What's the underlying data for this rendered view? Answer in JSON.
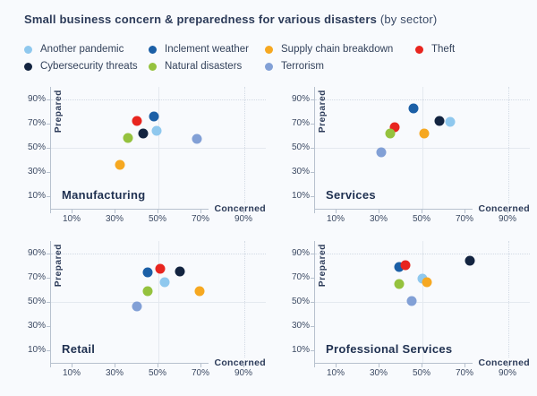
{
  "title": {
    "main": "Small business concern & preparedness for various disasters",
    "suffix": "(by sector)"
  },
  "colors": {
    "background": "#f8fafd",
    "axis": "#b7c1ce",
    "grid_solid": "#e4e9ef",
    "grid_dotted": "#d2dae4",
    "text": "#2c3b59"
  },
  "chart_data": {
    "type": "scatter",
    "title": "Small business concern & preparedness for various disasters (by sector)",
    "xlabel": "Concerned",
    "ylabel": "Prepared",
    "xlim": [
      0,
      100
    ],
    "ylim": [
      0,
      100
    ],
    "x_ticks": [
      10,
      30,
      50,
      70,
      90
    ],
    "y_ticks": [
      10,
      30,
      50,
      70,
      90
    ],
    "tick_suffix": "%",
    "solid_gridline_at": 50,
    "dotted_gridline_at": 90,
    "legend_position": "top",
    "series": [
      {
        "name": "Another pandemic",
        "color": "#8fc8ee"
      },
      {
        "name": "Inclement weather",
        "color": "#1b5fa6"
      },
      {
        "name": "Supply chain breakdown",
        "color": "#f6a821"
      },
      {
        "name": "Theft",
        "color": "#e8251f"
      },
      {
        "name": "Cybersecurity threats",
        "color": "#132440"
      },
      {
        "name": "Natural disasters",
        "color": "#95c23e"
      },
      {
        "name": "Terrorism",
        "color": "#82a0d6"
      }
    ],
    "panels": [
      {
        "sector": "Manufacturing",
        "points": [
          {
            "series": "Another pandemic",
            "concerned": 49,
            "prepared": 64
          },
          {
            "series": "Inclement weather",
            "concerned": 48,
            "prepared": 76
          },
          {
            "series": "Supply chain breakdown",
            "concerned": 32,
            "prepared": 36
          },
          {
            "series": "Theft",
            "concerned": 40,
            "prepared": 72
          },
          {
            "series": "Cybersecurity threats",
            "concerned": 43,
            "prepared": 62
          },
          {
            "series": "Natural disasters",
            "concerned": 36,
            "prepared": 58
          },
          {
            "series": "Terrorism",
            "concerned": 68,
            "prepared": 57
          }
        ]
      },
      {
        "sector": "Services",
        "points": [
          {
            "series": "Another pandemic",
            "concerned": 63,
            "prepared": 71
          },
          {
            "series": "Inclement weather",
            "concerned": 46,
            "prepared": 82
          },
          {
            "series": "Supply chain breakdown",
            "concerned": 51,
            "prepared": 62
          },
          {
            "series": "Theft",
            "concerned": 37,
            "prepared": 67
          },
          {
            "series": "Cybersecurity threats",
            "concerned": 58,
            "prepared": 72
          },
          {
            "series": "Natural disasters",
            "concerned": 35,
            "prepared": 62
          },
          {
            "series": "Terrorism",
            "concerned": 31,
            "prepared": 46
          }
        ]
      },
      {
        "sector": "Retail",
        "points": [
          {
            "series": "Another pandemic",
            "concerned": 53,
            "prepared": 66
          },
          {
            "series": "Inclement weather",
            "concerned": 45,
            "prepared": 74
          },
          {
            "series": "Supply chain breakdown",
            "concerned": 69,
            "prepared": 59
          },
          {
            "series": "Theft",
            "concerned": 51,
            "prepared": 77
          },
          {
            "series": "Cybersecurity threats",
            "concerned": 60,
            "prepared": 75
          },
          {
            "series": "Natural disasters",
            "concerned": 45,
            "prepared": 59
          },
          {
            "series": "Terrorism",
            "concerned": 40,
            "prepared": 46
          }
        ]
      },
      {
        "sector": "Professional Services",
        "points": [
          {
            "series": "Another pandemic",
            "concerned": 50,
            "prepared": 69
          },
          {
            "series": "Inclement weather",
            "concerned": 39,
            "prepared": 79
          },
          {
            "series": "Supply chain breakdown",
            "concerned": 52,
            "prepared": 66
          },
          {
            "series": "Theft",
            "concerned": 42,
            "prepared": 80
          },
          {
            "series": "Cybersecurity threats",
            "concerned": 72,
            "prepared": 84
          },
          {
            "series": "Natural disasters",
            "concerned": 39,
            "prepared": 65
          },
          {
            "series": "Terrorism",
            "concerned": 45,
            "prepared": 51
          }
        ]
      }
    ]
  }
}
